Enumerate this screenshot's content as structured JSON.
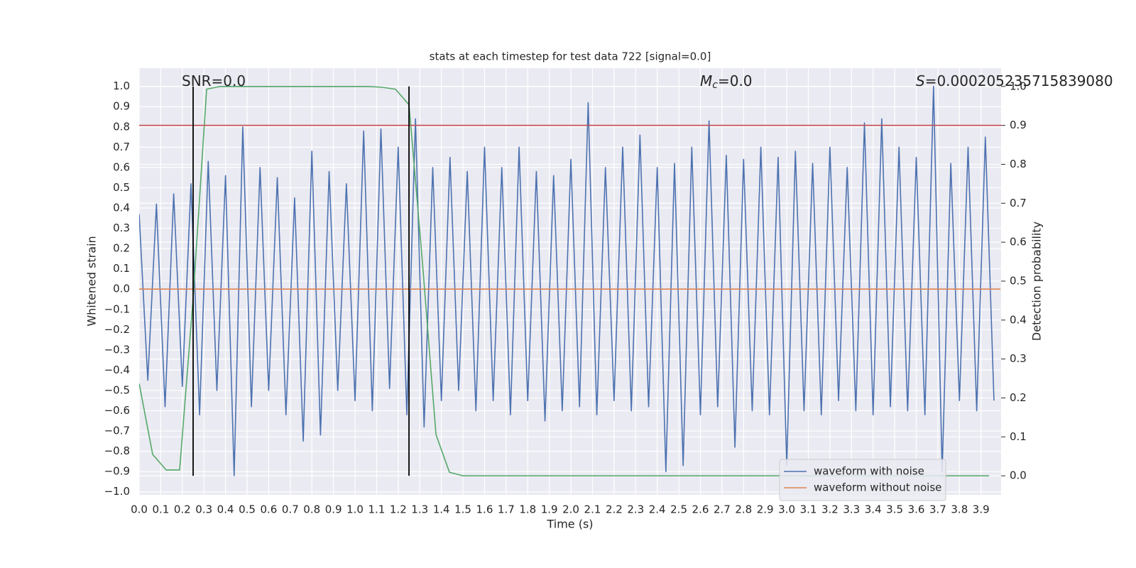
{
  "chart_data": {
    "type": "line",
    "title": "stats at each timestep for test data 722 [signal=0.0]",
    "xlabel": "Time (s)",
    "ylabel": "Whitened strain",
    "y2label": "Detection probability",
    "xlim": [
      0,
      3.993
    ],
    "ylim": [
      -1.015,
      1.09
    ],
    "y2lim": [
      -0.049,
      1.047
    ],
    "grid": true,
    "legend": "lower right",
    "xticks": [
      {
        "value": 0,
        "label": "0.0"
      },
      {
        "value": 0.1,
        "label": "0.1"
      },
      {
        "value": 0.2,
        "label": "0.2"
      },
      {
        "value": 0.3,
        "label": "0.3"
      },
      {
        "value": 0.4,
        "label": "0.4"
      },
      {
        "value": 0.5,
        "label": "0.5"
      },
      {
        "value": 0.6,
        "label": "0.6"
      },
      {
        "value": 0.7,
        "label": "0.7"
      },
      {
        "value": 0.8,
        "label": "0.8"
      },
      {
        "value": 0.9,
        "label": "0.9"
      },
      {
        "value": 1,
        "label": "1.0"
      },
      {
        "value": 1.1,
        "label": "1.1"
      },
      {
        "value": 1.2,
        "label": "1.2"
      },
      {
        "value": 1.3,
        "label": "1.3"
      },
      {
        "value": 1.4,
        "label": "1.4"
      },
      {
        "value": 1.5,
        "label": "1.5"
      },
      {
        "value": 1.6,
        "label": "1.6"
      },
      {
        "value": 1.7,
        "label": "1.7"
      },
      {
        "value": 1.8,
        "label": "1.8"
      },
      {
        "value": 1.9,
        "label": "1.9"
      },
      {
        "value": 2,
        "label": "2.0"
      },
      {
        "value": 2.1,
        "label": "2.1"
      },
      {
        "value": 2.2,
        "label": "2.2"
      },
      {
        "value": 2.3,
        "label": "2.3"
      },
      {
        "value": 2.4,
        "label": "2.4"
      },
      {
        "value": 2.5,
        "label": "2.5"
      },
      {
        "value": 2.6,
        "label": "2.6"
      },
      {
        "value": 2.7,
        "label": "2.7"
      },
      {
        "value": 2.8,
        "label": "2.8"
      },
      {
        "value": 2.9,
        "label": "2.9"
      },
      {
        "value": 3,
        "label": "3.0"
      },
      {
        "value": 3.1,
        "label": "3.1"
      },
      {
        "value": 3.2,
        "label": "3.2"
      },
      {
        "value": 3.3,
        "label": "3.3"
      },
      {
        "value": 3.4,
        "label": "3.4"
      },
      {
        "value": 3.5,
        "label": "3.5"
      },
      {
        "value": 3.6,
        "label": "3.6"
      },
      {
        "value": 3.7,
        "label": "3.7"
      },
      {
        "value": 3.8,
        "label": "3.8"
      },
      {
        "value": 3.9,
        "label": "3.9"
      }
    ],
    "yticks": [
      {
        "value": -1,
        "label": "−1.0"
      },
      {
        "value": -0.9,
        "label": "−0.9"
      },
      {
        "value": -0.8,
        "label": "−0.8"
      },
      {
        "value": -0.7,
        "label": "−0.7"
      },
      {
        "value": -0.6,
        "label": "−0.6"
      },
      {
        "value": -0.5,
        "label": "−0.5"
      },
      {
        "value": -0.4,
        "label": "−0.4"
      },
      {
        "value": -0.3,
        "label": "−0.3"
      },
      {
        "value": -0.2,
        "label": "−0.2"
      },
      {
        "value": -0.1,
        "label": "−0.1"
      },
      {
        "value": 0,
        "label": "0.0"
      },
      {
        "value": 0.1,
        "label": "0.1"
      },
      {
        "value": 0.2,
        "label": "0.2"
      },
      {
        "value": 0.3,
        "label": "0.3"
      },
      {
        "value": 0.4,
        "label": "0.4"
      },
      {
        "value": 0.5,
        "label": "0.5"
      },
      {
        "value": 0.6,
        "label": "0.6"
      },
      {
        "value": 0.7,
        "label": "0.7"
      },
      {
        "value": 0.8,
        "label": "0.8"
      },
      {
        "value": 0.9,
        "label": "0.9"
      },
      {
        "value": 1,
        "label": "1.0"
      }
    ],
    "y2ticks": [
      {
        "value": 0,
        "label": "0.0"
      },
      {
        "value": 0.1,
        "label": "0.1"
      },
      {
        "value": 0.2,
        "label": "0.2"
      },
      {
        "value": 0.3,
        "label": "0.3"
      },
      {
        "value": 0.4,
        "label": "0.4"
      },
      {
        "value": 0.5,
        "label": "0.5"
      },
      {
        "value": 0.6,
        "label": "0.6"
      },
      {
        "value": 0.7,
        "label": "0.7"
      },
      {
        "value": 0.8,
        "label": "0.8"
      },
      {
        "value": 0.9,
        "label": "0.9"
      },
      {
        "value": 1,
        "label": "1.0"
      }
    ],
    "series": [
      {
        "name": "waveform with noise",
        "color": "#4c72b0",
        "x": [
          0,
          0.04,
          0.08,
          0.12,
          0.16,
          0.2,
          0.24,
          0.28,
          0.32,
          0.36,
          0.4,
          0.44,
          0.48,
          0.52,
          0.56,
          0.6,
          0.64,
          0.68,
          0.72,
          0.76,
          0.8,
          0.84,
          0.88,
          0.92,
          0.96,
          1,
          1.04,
          1.08,
          1.12,
          1.16,
          1.2,
          1.24,
          1.28,
          1.32,
          1.36,
          1.4,
          1.44,
          1.48,
          1.52,
          1.56,
          1.6,
          1.64,
          1.68,
          1.72,
          1.76,
          1.8,
          1.84,
          1.88,
          1.92,
          1.96,
          2,
          2.04,
          2.08,
          2.12,
          2.16,
          2.2,
          2.24,
          2.28,
          2.32,
          2.36,
          2.4,
          2.44,
          2.48,
          2.52,
          2.56,
          2.6,
          2.64,
          2.68,
          2.72,
          2.76,
          2.8,
          2.84,
          2.88,
          2.92,
          2.96,
          3,
          3.04,
          3.08,
          3.12,
          3.16,
          3.2,
          3.24,
          3.28,
          3.32,
          3.36,
          3.4,
          3.44,
          3.48,
          3.52,
          3.56,
          3.6,
          3.64,
          3.68,
          3.72,
          3.76,
          3.8,
          3.84,
          3.88,
          3.92,
          3.96
        ],
        "values": [
          0.37,
          -0.45,
          0.42,
          -0.58,
          0.47,
          -0.48,
          0.52,
          -0.62,
          0.63,
          -0.5,
          0.56,
          -0.92,
          0.8,
          -0.58,
          0.6,
          -0.5,
          0.55,
          -0.62,
          0.45,
          -0.75,
          0.68,
          -0.72,
          0.58,
          -0.5,
          0.52,
          -0.55,
          0.78,
          -0.6,
          0.79,
          -0.49,
          0.7,
          -0.62,
          0.84,
          -0.68,
          0.6,
          -0.55,
          0.65,
          -0.5,
          0.58,
          -0.6,
          0.7,
          -0.55,
          0.6,
          -0.62,
          0.7,
          -0.55,
          0.58,
          -0.65,
          0.56,
          -0.6,
          0.64,
          -0.58,
          0.92,
          -0.62,
          0.6,
          -0.55,
          0.7,
          -0.6,
          0.76,
          -0.58,
          0.6,
          -0.9,
          0.62,
          -0.87,
          0.7,
          -0.62,
          0.83,
          -0.58,
          0.66,
          -0.78,
          0.64,
          -0.6,
          0.7,
          -0.62,
          0.65,
          -0.87,
          0.68,
          -0.6,
          0.62,
          -0.62,
          0.7,
          -0.55,
          0.6,
          -0.6,
          0.82,
          -0.62,
          0.84,
          -0.58,
          0.7,
          -0.6,
          0.65,
          -0.62,
          1,
          -0.9,
          0.62,
          -0.55,
          0.7,
          -0.6,
          0.75,
          -0.55
        ]
      },
      {
        "name": "waveform without noise",
        "color": "#dd8452",
        "x": [
          0,
          3.99
        ],
        "values": [
          0,
          0
        ]
      },
      {
        "color": "#55a868",
        "axis": "y2",
        "x": [
          0,
          0.0625,
          0.125,
          0.1875,
          0.25,
          0.3125,
          0.375,
          0.4375,
          0.5,
          0.5625,
          0.625,
          0.6875,
          0.75,
          0.8125,
          0.875,
          0.9375,
          1,
          1.0625,
          1.125,
          1.1875,
          1.25,
          1.3125,
          1.375,
          1.4375,
          1.5,
          1.5625,
          1.625,
          1.6875,
          1.75,
          1.8125,
          1.875,
          1.9375,
          2,
          2.0625,
          2.125,
          2.1875,
          2.25,
          2.3125,
          2.375,
          2.4375,
          2.5,
          2.5625,
          2.625,
          2.6875,
          2.75,
          2.8125,
          2.875,
          2.9375,
          3,
          3.0625,
          3.125,
          3.1875,
          3.25,
          3.3125,
          3.375,
          3.4375,
          3.5,
          3.5625,
          3.625,
          3.6875,
          3.75,
          3.8125,
          3.875,
          3.9375
        ],
        "values": [
          0.237,
          0.055,
          0.015,
          0.015,
          0.456,
          0.993,
          1,
          1,
          1,
          1,
          1,
          1,
          1,
          1,
          1,
          1,
          1,
          1,
          0.998,
          0.993,
          0.953,
          0.547,
          0.106,
          0.009,
          0,
          0,
          0,
          0,
          0,
          0,
          0,
          0,
          0,
          0,
          0,
          0,
          0,
          0,
          0,
          0,
          0,
          0,
          0,
          0,
          0,
          0,
          0,
          0,
          0,
          0,
          0,
          0,
          0,
          0,
          0,
          0,
          0,
          0,
          0,
          0,
          0,
          0,
          0,
          0
        ]
      }
    ],
    "hlines": [
      {
        "value": 0.9,
        "axis": "y2",
        "color": "#c44e52"
      }
    ],
    "vlines": [
      {
        "value": 0.25,
        "ymin": 0,
        "ymax": 1,
        "axis": "y2",
        "color": "#000000"
      },
      {
        "value": 1.25,
        "ymin": 0,
        "ymax": 1,
        "axis": "y2",
        "color": "#000000"
      }
    ],
    "annotations": [
      {
        "text": "SNR=0.0"
      },
      {
        "symbol": "M",
        "subscript": "c",
        "text": "=0.0"
      },
      {
        "symbol": "S",
        "text": "=0.000205235715839080"
      }
    ]
  }
}
